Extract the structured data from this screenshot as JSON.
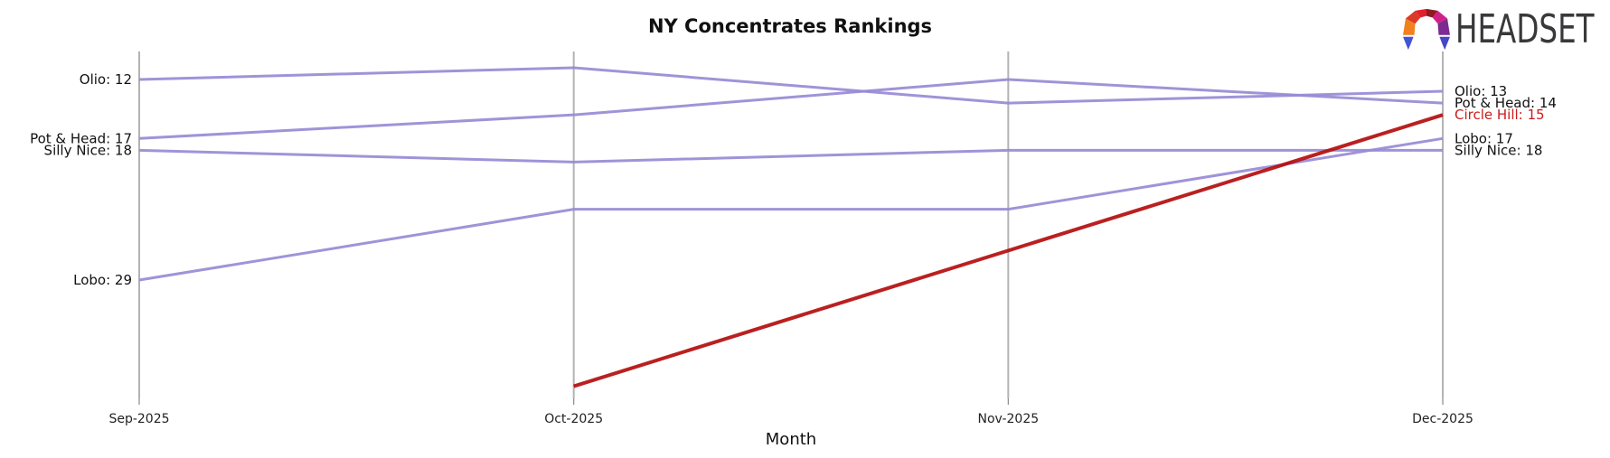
{
  "logo": {
    "text": "HEADSET"
  },
  "chart_data": {
    "type": "line",
    "title": "NY Concentrates Rankings",
    "xlabel": "Month",
    "x": [
      "Sep-2025",
      "Oct-2025",
      "Nov-2025",
      "Dec-2025"
    ],
    "y_axis": {
      "kind": "rank",
      "inverted": true,
      "visible_rank_range": [
        10,
        38
      ],
      "gridlines": "vertical-only"
    },
    "series": [
      {
        "name": "Olio",
        "color": "#988ad5",
        "width": 3,
        "values": [
          12,
          11,
          14,
          13
        ]
      },
      {
        "name": "Pot & Head",
        "color": "#988ad5",
        "width": 3,
        "values": [
          17,
          15,
          12,
          14
        ]
      },
      {
        "name": "Silly Nice",
        "color": "#988ad5",
        "width": 3,
        "values": [
          18,
          19,
          18,
          18
        ]
      },
      {
        "name": "Lobo",
        "color": "#988ad5",
        "width": 3,
        "values": [
          29,
          23,
          23,
          17
        ]
      },
      {
        "name": "Circle Hill",
        "color": "#b40d0d",
        "width": 4,
        "values": [
          null,
          38,
          null,
          15
        ],
        "note": "line enters at bottom edge of chart at Oct-2025 and runs straight to rank 15 at Dec-2025"
      }
    ],
    "left_labels": [
      {
        "text": "Olio: 12",
        "rank": 12,
        "color": "#111111"
      },
      {
        "text": "Pot & Head: 17",
        "rank": 17,
        "color": "#111111"
      },
      {
        "text": "Silly Nice: 18",
        "rank": 18,
        "color": "#111111"
      },
      {
        "text": "Lobo: 29",
        "rank": 29,
        "color": "#111111"
      }
    ],
    "right_labels": [
      {
        "text": "Olio: 13",
        "rank": 13,
        "color": "#111111"
      },
      {
        "text": "Pot & Head: 14",
        "rank": 14,
        "color": "#111111"
      },
      {
        "text": "Circle Hill: 15",
        "rank": 15,
        "color": "#cc1a1a"
      },
      {
        "text": "Lobo: 17",
        "rank": 17,
        "color": "#111111"
      },
      {
        "text": "Silly Nice: 18",
        "rank": 18,
        "color": "#111111"
      }
    ],
    "style": {
      "gridline_color": "#b3b3b3",
      "tick_color": "#8a8a8a",
      "tick_label_color": "#222222",
      "label_font_px": 15,
      "tick_font_px": 14
    }
  }
}
